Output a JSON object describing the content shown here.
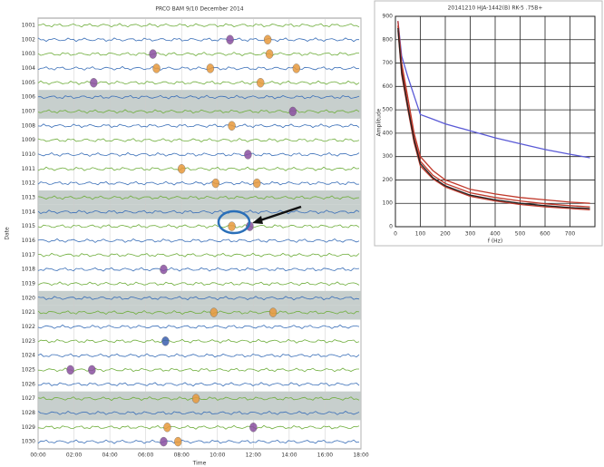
{
  "chart_data": [
    {
      "type": "strip",
      "title": "PRCO BAM 9/10 December 2014",
      "xlabel": "Time",
      "ylabel": "Date",
      "rows": [
        "1001",
        "1002",
        "1003",
        "1004",
        "1005",
        "1006",
        "1007",
        "1008",
        "1009",
        "1010",
        "1011",
        "1012",
        "1013",
        "1014",
        "1015",
        "1016",
        "1017",
        "1018",
        "1019",
        "1020",
        "1021",
        "1022",
        "1023",
        "1024",
        "1025",
        "1026",
        "1027",
        "1028",
        "1029",
        "1030"
      ],
      "shaded_rows": [
        5,
        6,
        12,
        13,
        19,
        20,
        26,
        27
      ],
      "trace_colors": [
        "#6fae3c",
        "#3a6fb8"
      ],
      "shade_color": "#b9c3c0",
      "xlim": [
        0,
        18
      ],
      "xticks": [
        {
          "value": 0,
          "label": "00:00"
        },
        {
          "value": 2,
          "label": "02:00"
        },
        {
          "value": 4,
          "label": "04:00"
        },
        {
          "value": 6,
          "label": "06:00"
        },
        {
          "value": 8,
          "label": "08:00"
        },
        {
          "value": 10,
          "label": "10:00"
        },
        {
          "value": 12,
          "label": "12:00"
        },
        {
          "value": 14,
          "label": "14:00"
        },
        {
          "value": 16,
          "label": "16:00"
        },
        {
          "value": 18,
          "label": "18:00"
        }
      ],
      "events": [
        {
          "x": 6.4,
          "row": 2,
          "color": "#8a4fa0"
        },
        {
          "x": 6.6,
          "row": 3,
          "color": "#e89a3c"
        },
        {
          "x": 3.1,
          "row": 4,
          "color": "#8a4fa0"
        },
        {
          "x": 10.7,
          "row": 1,
          "color": "#8a4fa0"
        },
        {
          "x": 12.8,
          "row": 1,
          "color": "#e89a3c"
        },
        {
          "x": 12.9,
          "row": 2,
          "color": "#e89a3c"
        },
        {
          "x": 9.6,
          "row": 3,
          "color": "#e89a3c"
        },
        {
          "x": 14.4,
          "row": 3,
          "color": "#e89a3c"
        },
        {
          "x": 12.4,
          "row": 4,
          "color": "#e89a3c"
        },
        {
          "x": 14.2,
          "row": 6,
          "color": "#8a4fa0"
        },
        {
          "x": 10.8,
          "row": 7,
          "color": "#e89a3c"
        },
        {
          "x": 11.7,
          "row": 9,
          "color": "#8a4fa0"
        },
        {
          "x": 8.0,
          "row": 10,
          "color": "#e89a3c"
        },
        {
          "x": 9.9,
          "row": 11,
          "color": "#e89a3c"
        },
        {
          "x": 12.2,
          "row": 11,
          "color": "#e89a3c"
        },
        {
          "x": 10.8,
          "row": 14,
          "color": "#e89a3c"
        },
        {
          "x": 11.8,
          "row": 14,
          "color": "#8a4fa0"
        },
        {
          "x": 7.0,
          "row": 17,
          "color": "#8a4fa0"
        },
        {
          "x": 9.8,
          "row": 20,
          "color": "#e89a3c"
        },
        {
          "x": 13.1,
          "row": 20,
          "color": "#e89a3c"
        },
        {
          "x": 7.1,
          "row": 22,
          "color": "#3a5fb0"
        },
        {
          "x": 1.8,
          "row": 24,
          "color": "#8a4fa0"
        },
        {
          "x": 3.0,
          "row": 24,
          "color": "#8a4fa0"
        },
        {
          "x": 8.8,
          "row": 26,
          "color": "#e89a3c"
        },
        {
          "x": 7.2,
          "row": 28,
          "color": "#e89a3c"
        },
        {
          "x": 12.0,
          "row": 28,
          "color": "#8a4fa0"
        },
        {
          "x": 7.0,
          "row": 29,
          "color": "#8a4fa0"
        },
        {
          "x": 7.8,
          "row": 29,
          "color": "#e89a3c"
        }
      ]
    },
    {
      "type": "line",
      "title": "20141210 HJA-1442(B) RK-5 .75B+",
      "xlabel": "f (Hz)",
      "ylabel": "Amplitude",
      "x": [
        10,
        25,
        50,
        75,
        100,
        150,
        200,
        300,
        400,
        500,
        600,
        700,
        780
      ],
      "xlim": [
        0,
        800
      ],
      "xticks": [
        0,
        100,
        200,
        300,
        400,
        500,
        600,
        700
      ],
      "ylim": [
        0,
        900
      ],
      "yticks": [
        0,
        100,
        200,
        300,
        400,
        500,
        600,
        700,
        800,
        900
      ],
      "grid": true,
      "series": [
        {
          "color": "#5a5ad6",
          "values": [
            880,
            730,
            640,
            560,
            480,
            460,
            440,
            410,
            380,
            355,
            330,
            310,
            295
          ]
        },
        {
          "color": "#c0392b",
          "values": [
            880,
            700,
            550,
            400,
            300,
            240,
            200,
            160,
            140,
            125,
            115,
            105,
            100
          ]
        },
        {
          "color": "#c0392b",
          "values": [
            860,
            680,
            520,
            380,
            280,
            220,
            185,
            145,
            125,
            110,
            98,
            90,
            85
          ]
        },
        {
          "color": "#c0392b",
          "values": [
            840,
            650,
            500,
            360,
            260,
            205,
            170,
            130,
            110,
            95,
            85,
            78,
            72
          ]
        },
        {
          "color": "#222222",
          "values": [
            850,
            660,
            510,
            370,
            270,
            210,
            175,
            135,
            115,
            100,
            90,
            82,
            78
          ]
        }
      ]
    }
  ]
}
